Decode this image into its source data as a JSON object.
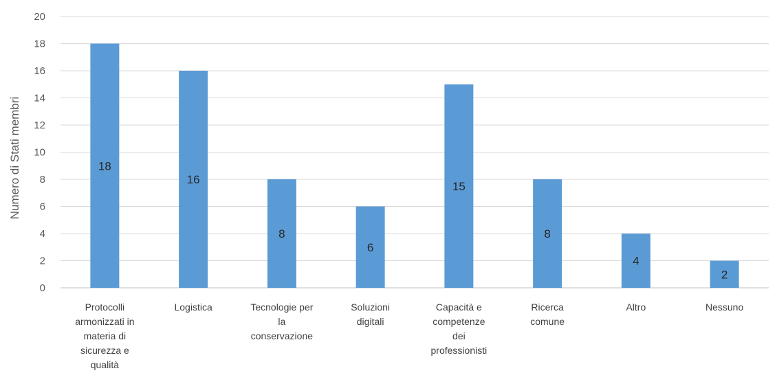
{
  "chart_data": {
    "type": "bar",
    "title": "",
    "xlabel": "",
    "ylabel": "Numero di Stati membri",
    "ylim": [
      0,
      20
    ],
    "yticks": [
      0,
      2,
      4,
      6,
      8,
      10,
      12,
      14,
      16,
      18,
      20
    ],
    "grid": true,
    "bar_color": "#5B9BD5",
    "categories": [
      [
        "Protocolli",
        "armonizzati in",
        "materia di",
        "sicurezza e",
        "qualità"
      ],
      [
        "Logistica"
      ],
      [
        "Tecnologie per",
        "la",
        "conservazione"
      ],
      [
        "Soluzioni",
        "digitali"
      ],
      [
        "Capacità e",
        "competenze",
        "dei",
        "professionisti"
      ],
      [
        "Ricerca",
        "comune"
      ],
      [
        "Altro"
      ],
      [
        "Nessuno"
      ]
    ],
    "values": [
      18,
      16,
      8,
      6,
      15,
      8,
      4,
      2
    ]
  }
}
